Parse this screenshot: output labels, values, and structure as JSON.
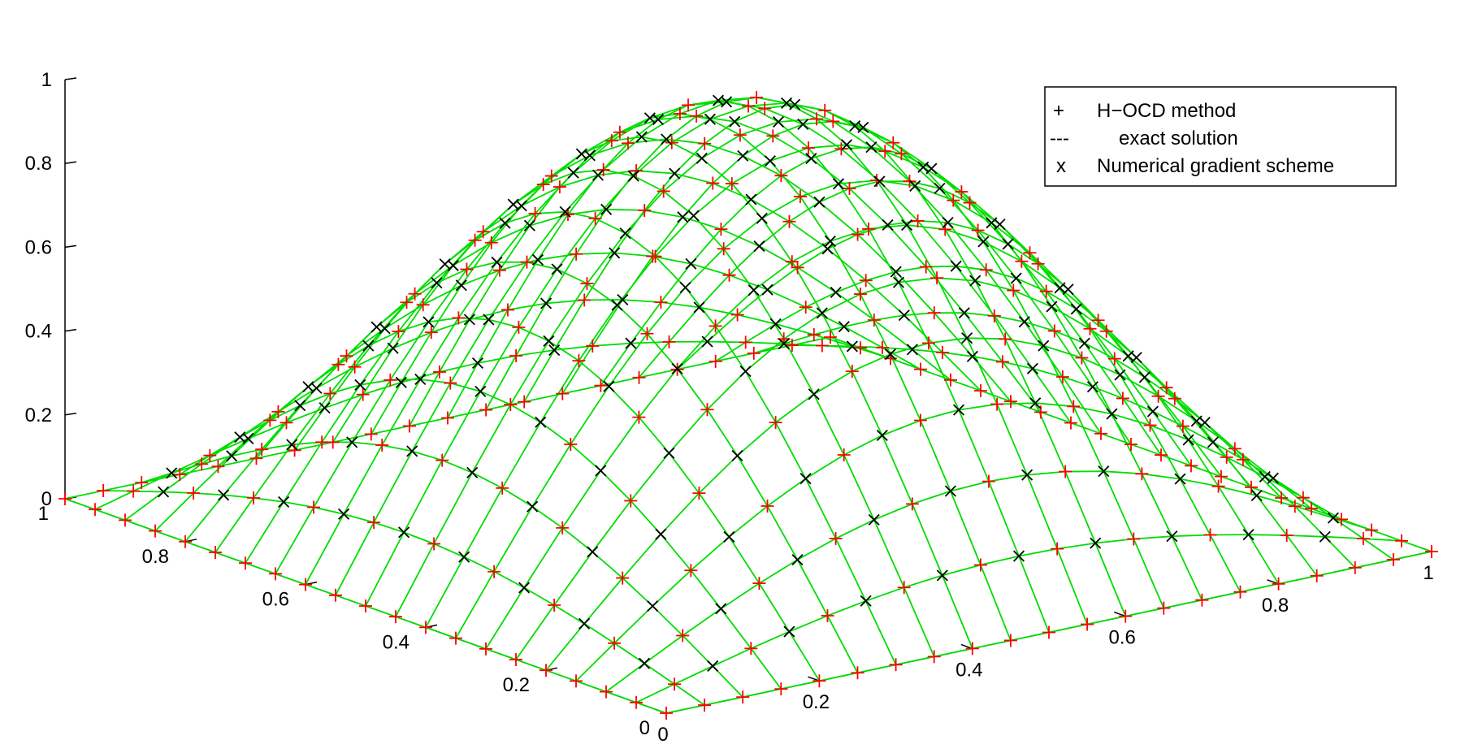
{
  "chart_data": {
    "type": "surface3d",
    "function": "sin(pi*x)*sin(pi*y)",
    "grid": {
      "x": [
        0,
        0.05,
        0.1,
        0.15,
        0.2,
        0.25,
        0.3,
        0.35,
        0.4,
        0.45,
        0.5,
        0.55,
        0.6,
        0.65,
        0.7,
        0.75,
        0.8,
        0.85,
        0.9,
        0.95,
        1.0
      ],
      "y": [
        0,
        0.05,
        0.1,
        0.15,
        0.2,
        0.25,
        0.3,
        0.35,
        0.4,
        0.45,
        0.5,
        0.55,
        0.6,
        0.65,
        0.7,
        0.75,
        0.8,
        0.85,
        0.9,
        0.95,
        1.0
      ]
    },
    "xlim": [
      0,
      1
    ],
    "ylim": [
      0,
      1
    ],
    "zlim": [
      0,
      1
    ],
    "x_ticks": [
      "0",
      "0.2",
      "0.4",
      "0.6",
      "0.8",
      "1"
    ],
    "y_ticks": [
      "0",
      "0.2",
      "0.4",
      "0.6",
      "0.8",
      "1"
    ],
    "z_ticks": [
      "0",
      "0.2",
      "0.4",
      "0.6",
      "0.8",
      "1"
    ],
    "series": [
      {
        "name": "H−OCD method",
        "marker": "+",
        "color": "#ff0000",
        "legend_symbol": "+"
      },
      {
        "name": "exact solution",
        "style": "line",
        "color": "#00dd00",
        "legend_symbol": "---"
      },
      {
        "name": "Numerical gradient scheme",
        "marker": "x",
        "color": "#000000",
        "legend_symbol": "x"
      }
    ],
    "legend": {
      "position": "top-right"
    }
  }
}
